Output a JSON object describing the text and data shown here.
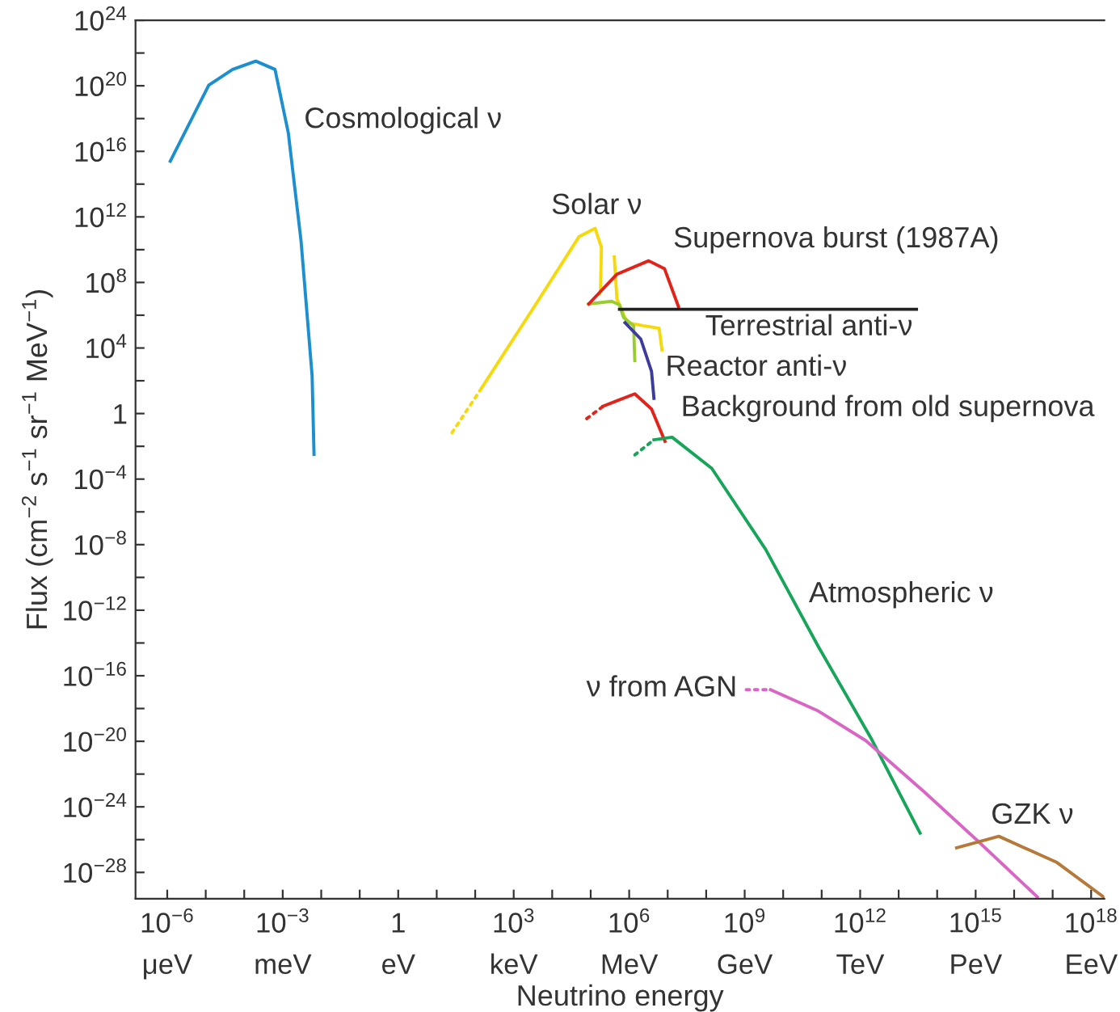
{
  "chart_data": {
    "type": "line",
    "xlabel": "Neutrino energy",
    "ylabel": "Flux (cm$^{−2}$ s$^{−1}$ sr$^{−1}$ MeV$^{−1}$)",
    "log": "xy",
    "grid": false,
    "legend": false,
    "xlim": [
      1.5e-07,
      2.2e+18
    ],
    "ylim": [
      2.5e-30,
      1e+24
    ],
    "xticks": [
      {
        "value": 1e-06,
        "label": "10$^{−6}$"
      },
      {
        "value": 1e-05,
        "label": null
      },
      {
        "value": 0.0001,
        "label": null
      },
      {
        "value": 0.001,
        "label": "10$^{−3}$"
      },
      {
        "value": 0.01,
        "label": null
      },
      {
        "value": 0.1,
        "label": null
      },
      {
        "value": 1,
        "label": "1"
      },
      {
        "value": 10.0,
        "label": null
      },
      {
        "value": 100.0,
        "label": null
      },
      {
        "value": 1000.0,
        "label": "10$^{3}$"
      },
      {
        "value": 10000.0,
        "label": null
      },
      {
        "value": 100000.0,
        "label": null
      },
      {
        "value": 1000000.0,
        "label": "10$^{6}$"
      },
      {
        "value": 10000000.0,
        "label": null
      },
      {
        "value": 100000000.0,
        "label": null
      },
      {
        "value": 1000000000.0,
        "label": "10$^{9}$"
      },
      {
        "value": 10000000000.0,
        "label": null
      },
      {
        "value": 100000000000.0,
        "label": null
      },
      {
        "value": 1000000000000.0,
        "label": "10$^{12}$"
      },
      {
        "value": 10000000000000.0,
        "label": null
      },
      {
        "value": 100000000000000.0,
        "label": null
      },
      {
        "value": 1000000000000000.0,
        "label": "10$^{15}$"
      },
      {
        "value": 1e+16,
        "label": null
      },
      {
        "value": 1e+17,
        "label": null
      },
      {
        "value": 1e+18,
        "label": "10$^{18}$"
      }
    ],
    "yticks": [
      {
        "value": 1e+24,
        "label": "10$^{24}$"
      },
      {
        "value": 1e+22,
        "label": null
      },
      {
        "value": 1e+20,
        "label": "10$^{20}$"
      },
      {
        "value": 1e+18,
        "label": null
      },
      {
        "value": 1e+16,
        "label": "10$^{16}$"
      },
      {
        "value": 100000000000000.0,
        "label": null
      },
      {
        "value": 1000000000000.0,
        "label": "10$^{12}$"
      },
      {
        "value": 10000000000.0,
        "label": null
      },
      {
        "value": 100000000.0,
        "label": "10$^{8}$"
      },
      {
        "value": 1000000.0,
        "label": null
      },
      {
        "value": 10000.0,
        "label": "10$^{4}$"
      },
      {
        "value": 100,
        "label": null
      },
      {
        "value": 1,
        "label": "1"
      },
      {
        "value": 0.01,
        "label": null
      },
      {
        "value": 0.0001,
        "label": "10$^{−4}$"
      },
      {
        "value": 1e-06,
        "label": null
      },
      {
        "value": 1e-08,
        "label": "10$^{−8}$"
      },
      {
        "value": 1e-10,
        "label": null
      },
      {
        "value": 1e-12,
        "label": "10$^{−12}$"
      },
      {
        "value": 1e-14,
        "label": null
      },
      {
        "value": 1e-16,
        "label": "10$^{−16}$"
      },
      {
        "value": 1e-18,
        "label": null
      },
      {
        "value": 1e-20,
        "label": "10$^{−20}$"
      },
      {
        "value": 1e-22,
        "label": null
      },
      {
        "value": 1e-24,
        "label": "10$^{−24}$"
      },
      {
        "value": 1e-26,
        "label": null
      },
      {
        "value": 1e-28,
        "label": "10$^{−28}$"
      }
    ],
    "series": [
      {
        "color": "#1b8fcf",
        "line_style": "solid",
        "x": [
          1.2e-06,
          1.2e-05,
          5e-05,
          0.0002,
          0.00063,
          0.0014,
          0.003,
          0.0058,
          0.0065
        ],
        "values": [
          2500000000000000.0,
          1.1e+20,
          1e+21,
          3.2e+21,
          1e+21,
          1.3e+17,
          32000000000.0,
          200,
          0.0032
        ]
      },
      {
        "color": "#f5d90a",
        "line_style": "dotted",
        "x": [
          25,
          150
        ],
        "values": [
          0.068,
          39
        ]
      },
      {
        "color": "#f5d90a",
        "line_style": "solid",
        "x": [
          150,
          4200,
          50000.0,
          130000.0,
          190000.0,
          180000.0,
          170000.0
        ],
        "values": [
          39,
          7100000.0,
          63000000000.0,
          200000000000.0,
          14000000000.0,
          32000000.0,
          20000000.0
        ]
      },
      {
        "color": "#f5d90a",
        "line_style": "solid",
        "x": [
          410000.0,
          480000.0,
          890000.0,
          2300000.0,
          6000000.0,
          7100000.0
        ],
        "values": [
          3600000000.0,
          10000000.0,
          350000.0,
          230000.0,
          160000.0,
          7800.0
        ]
      },
      {
        "color": "#9acd32",
        "line_style": "solid",
        "x": [
          89000.0,
          350000.0,
          560000.0,
          710000.0,
          1300000.0,
          1400000.0
        ],
        "values": [
          4900000.0,
          7100000.0,
          4300000.0,
          740000.0,
          230000.0,
          1700.0
        ]
      },
      {
        "color": "#e2231a",
        "line_style": "solid",
        "x": [
          89000.0,
          480000.0,
          3200000.0,
          8300000.0,
          19000000.0
        ],
        "values": [
          4900000.0,
          320000000.0,
          2100000000.0,
          680000000.0,
          3400000.0
        ]
      },
      {
        "color": "#222222",
        "line_style": "solid",
        "x": [
          560000.0,
          29000000000000.0
        ],
        "values": [
          2300000.0,
          2300000.0
        ]
      },
      {
        "color": "#3c3c9c",
        "line_style": "solid",
        "x": [
          780000.0,
          2000000.0,
          3800000.0,
          4400000.0
        ],
        "values": [
          350000.0,
          35000.0,
          380,
          8.5
        ]
      },
      {
        "color": "#e2231a",
        "line_style": "dotted",
        "x": [
          79000.0,
          210000.0
        ],
        "values": [
          0.49,
          2.8
        ]
      },
      {
        "color": "#e2231a",
        "line_style": "solid",
        "x": [
          210000.0,
          1400000.0,
          3800000.0,
          8500000.0
        ],
        "values": [
          2.8,
          16,
          1.9,
          0.02
        ]
      },
      {
        "color": "#17a55a",
        "line_style": "dotted",
        "x": [
          1400000.0,
          4400000.0
        ],
        "values": [
          0.003,
          0.025
        ]
      },
      {
        "color": "#17a55a",
        "line_style": "solid",
        "x": [
          4400000.0,
          13000000.0,
          140000000.0,
          3500000000.0,
          81000000000.0,
          1900000000000.0,
          36000000000000.0
        ],
        "values": [
          0.025,
          0.036,
          0.00045,
          5.2e-09,
          6.3e-15,
          1.6e-20,
          2.5e-26
        ]
      },
      {
        "color": "#d966c4",
        "line_style": "dotted",
        "x": [
          1100000000.0,
          4700000000.0
        ],
        "values": [
          1.4e-17,
          1.4e-17
        ]
      },
      {
        "color": "#d966c4",
        "line_style": "solid",
        "x": [
          4700000000.0,
          81000000000.0,
          1400000000000.0,
          47000000000000.0,
          1100000000000000.0,
          4e+16
        ],
        "values": [
          1.4e-17,
          7.1e-19,
          1.1e-20,
          7.9e-24,
          8.9e-27,
          3.2e-30
        ]
      },
      {
        "color": "#b5793a",
        "line_style": "solid",
        "x": [
          320000000000000.0,
          4000000000000000.0,
          1.3e+17,
          2.1e+18
        ],
        "values": [
          3.2e-27,
          1.6e-26,
          4e-28,
          3.2e-30
        ]
      }
    ],
    "annotations": [
      "Cosmological ν",
      "Solar ν",
      "Supernova burst (1987A)",
      "Terrestrial anti-ν",
      "Reactor anti-ν",
      "Background from old supernova",
      "Atmospheric ν",
      "ν from AGN",
      "GZK ν",
      "μeV",
      "meV",
      "eV",
      "keV",
      "MeV",
      "GeV",
      "TeV",
      "PeV",
      "EeV"
    ]
  }
}
